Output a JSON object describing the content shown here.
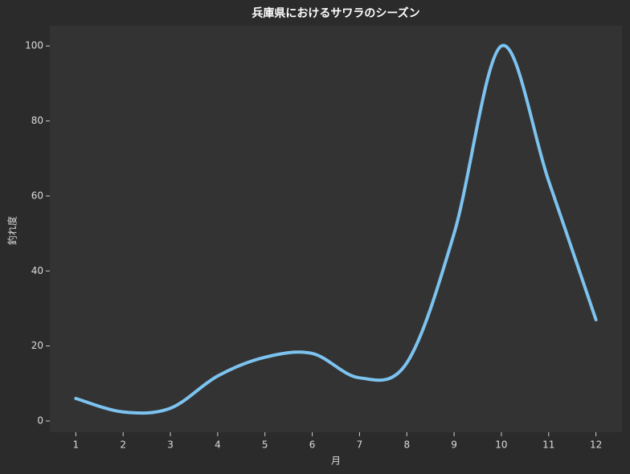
{
  "chart_data": {
    "type": "line",
    "title": "兵庫県におけるサワラのシーズン",
    "x_label": "月",
    "y_label": "釣れ度",
    "x": [
      1,
      2,
      3,
      4,
      5,
      6,
      7,
      8,
      9,
      10,
      11,
      12
    ],
    "series": [
      {
        "color": "#7cc3f0",
        "values": [
          6,
          2.4,
          3.4,
          12,
          17,
          18,
          11.5,
          15.5,
          50,
          100,
          64,
          27
        ]
      }
    ],
    "xlim": [
      0.45,
      12.55
    ],
    "xticks": [
      1,
      2,
      3,
      4,
      5,
      6,
      7,
      8,
      9,
      10,
      11,
      12
    ],
    "ylim": [
      -3,
      105.4
    ],
    "yticks": [
      0,
      20,
      40,
      60,
      80,
      100
    ],
    "smooth": true
  }
}
